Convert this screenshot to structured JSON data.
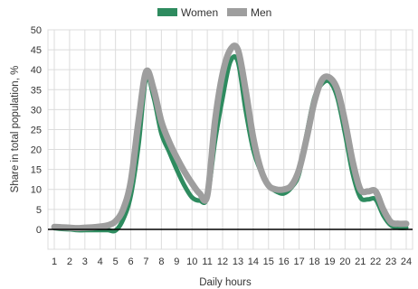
{
  "chart_data": {
    "type": "line",
    "title": "",
    "xlabel": "Daily hours",
    "ylabel": "Share in total population, %",
    "ylim": [
      -5,
      50
    ],
    "yticks": [
      0,
      5,
      10,
      15,
      20,
      25,
      30,
      35,
      40,
      45,
      50
    ],
    "xlim": [
      1,
      24
    ],
    "xticks": [
      "1",
      "2",
      "3",
      "4",
      "5",
      "6",
      "7",
      "8",
      "9",
      "10",
      "11",
      "12",
      "13",
      "14",
      "15",
      "16",
      "17",
      "18",
      "19",
      "20",
      "21",
      "22",
      "23",
      "24"
    ],
    "grid": "vertical and horizontal",
    "legend": "top-center",
    "series": [
      {
        "name": "Women",
        "color": "#2e8b5f",
        "x": [
          1,
          1.5,
          2,
          2.5,
          3,
          3.5,
          4,
          4.5,
          5,
          5.5,
          6,
          6.5,
          7,
          7.5,
          8,
          8.5,
          9,
          9.5,
          10,
          10.5,
          11,
          11.5,
          12,
          12.5,
          13,
          13.5,
          14,
          14.5,
          15,
          15.5,
          16,
          16.5,
          17,
          17.5,
          18,
          18.5,
          19,
          19.5,
          20,
          20.5,
          21,
          21.5,
          22,
          22.5,
          23,
          23.5,
          24
        ],
        "y": [
          0.3,
          0.1,
          0,
          -0.2,
          -0.2,
          -0.2,
          -0.2,
          -0.2,
          -0.3,
          2.5,
          8.5,
          21,
          38,
          33,
          24,
          19.5,
          15,
          11,
          8,
          7.2,
          8,
          22,
          33,
          42,
          42,
          30,
          20,
          14.5,
          11,
          9.5,
          9,
          10.5,
          14,
          24,
          33,
          36.5,
          37,
          33,
          24,
          14,
          8,
          7.5,
          7.5,
          3.5,
          1,
          0.4,
          0.4
        ]
      },
      {
        "name": "Men",
        "color": "#9e9e9e",
        "x": [
          1,
          1.5,
          2,
          2.5,
          3,
          3.5,
          4,
          4.5,
          5,
          5.5,
          6,
          6.5,
          7,
          7.5,
          8,
          8.5,
          9,
          9.5,
          10,
          10.5,
          11,
          11.5,
          12,
          12.5,
          13,
          13.5,
          14,
          14.5,
          15,
          15.5,
          16,
          16.5,
          17,
          17.5,
          18,
          18.5,
          19,
          19.5,
          20,
          20.5,
          21,
          21.5,
          22,
          22.5,
          23,
          23.5,
          24
        ],
        "y": [
          0.6,
          0.5,
          0.4,
          0.3,
          0.4,
          0.5,
          0.7,
          1,
          2,
          5,
          12,
          27,
          39.5,
          35,
          27,
          22,
          18,
          14.5,
          11.5,
          9,
          8.5,
          27,
          39,
          45,
          45,
          35,
          23,
          15,
          11,
          10,
          10,
          11,
          15,
          23,
          32,
          37.5,
          38,
          35,
          27,
          17,
          10,
          9.5,
          9.5,
          5,
          1.8,
          1.4,
          1.4
        ]
      }
    ]
  }
}
